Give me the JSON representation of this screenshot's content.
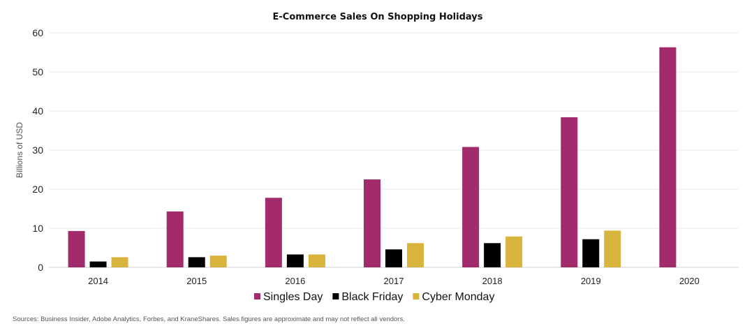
{
  "chart_data": {
    "type": "bar",
    "title": "E-Commerce Sales On Shopping Holidays",
    "ylabel": "Billions of USD",
    "xlabel": "",
    "ylim": [
      0,
      60
    ],
    "yticks": [
      0,
      10,
      20,
      30,
      40,
      50,
      60
    ],
    "grid": true,
    "legend_position": "bottom",
    "categories": [
      "2014",
      "2015",
      "2016",
      "2017",
      "2018",
      "2019",
      "2020"
    ],
    "series": [
      {
        "name": "Singles Day",
        "color": "#a22b6b",
        "values": [
          9.3,
          14.3,
          17.8,
          22.5,
          30.8,
          38.4,
          56.3
        ]
      },
      {
        "name": "Black Friday",
        "color": "#000000",
        "values": [
          1.5,
          2.6,
          3.3,
          4.6,
          6.2,
          7.2,
          null
        ]
      },
      {
        "name": "Cyber Monday",
        "color": "#d9b43c",
        "values": [
          2.6,
          3.0,
          3.3,
          6.2,
          7.9,
          9.4,
          null
        ]
      }
    ],
    "source": "Sources: Business Insider, Adobe Analytics, Forbes, and KraneShares. Sales figures are approximate and may not reflect all vendors."
  }
}
